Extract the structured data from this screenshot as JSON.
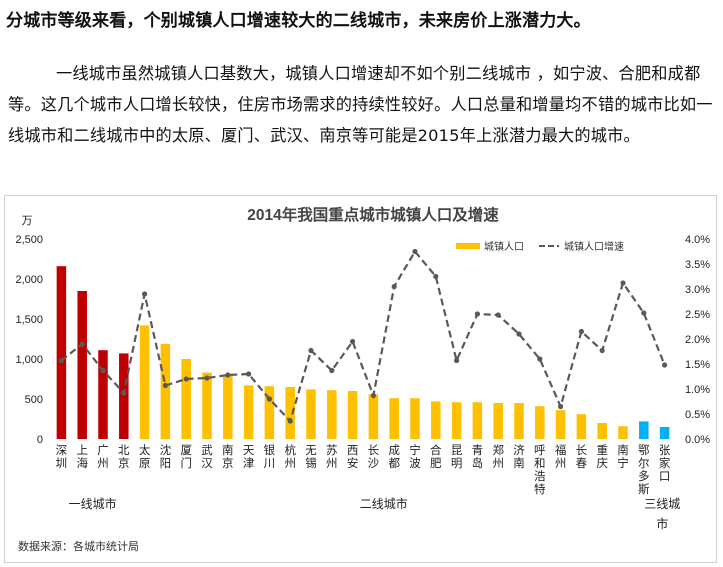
{
  "headline": "分城市等级来看，个别城镇人口增速较大的二线城市，未来房价上涨潜力大。",
  "paragraph": "一线城市虽然城镇人口基数大，城镇人口增速却不如个别二线城市 ，如宁波、合肥和成都等。这几个城市人口增长较快，住房市场需求的持续性较好。人口总量和增量均不错的城市比如一线城市和二线城市中的太原、厦门、武汉、南京等可能是2015年上涨潜力最大的城市。",
  "colors": {
    "tier1": "#C00000",
    "tier2": "#FFC000",
    "tier3": "#00B0F0",
    "line": "#595959"
  },
  "chart_data": {
    "type": "bar",
    "title": "2014年我国重点城市城镇人口及增速",
    "y_unit": "万",
    "ylim": [
      0,
      2500
    ],
    "yticks": [
      0,
      500,
      1000,
      1500,
      2000,
      2500
    ],
    "ytick_labels": [
      "0",
      "500",
      "1,000",
      "1,500",
      "2,000",
      "2,500"
    ],
    "y2lim": [
      0,
      4.0
    ],
    "y2ticks": [
      0,
      0.5,
      1.0,
      1.5,
      2.0,
      2.5,
      3.0,
      3.5,
      4.0
    ],
    "y2tick_labels": [
      "0.0%",
      "0.5%",
      "1.0%",
      "1.5%",
      "2.0%",
      "2.5%",
      "3.0%",
      "3.5%",
      "4.0%"
    ],
    "categories": [
      "深圳",
      "上海",
      "广州",
      "北京",
      "太原",
      "沈阳",
      "厦门",
      "武汉",
      "南京",
      "天津",
      "银川",
      "杭州",
      "无锡",
      "苏州",
      "西安",
      "长沙",
      "成都",
      "宁波",
      "合肥",
      "昆明",
      "青岛",
      "郑州",
      "济南",
      "呼和浩特",
      "福州",
      "长春",
      "重庆",
      "南宁",
      "鄂尔多斯",
      "张家口"
    ],
    "tiers": [
      1,
      1,
      1,
      1,
      2,
      2,
      2,
      2,
      2,
      2,
      2,
      2,
      2,
      2,
      2,
      2,
      2,
      2,
      2,
      2,
      2,
      2,
      2,
      2,
      2,
      2,
      2,
      2,
      3,
      3
    ],
    "series": [
      {
        "name": "城镇人口",
        "kind": "bar",
        "values": [
          2160,
          1850,
          1110,
          1070,
          1420,
          1190,
          1000,
          830,
          790,
          670,
          660,
          650,
          620,
          610,
          600,
          560,
          510,
          510,
          470,
          460,
          460,
          450,
          450,
          410,
          360,
          310,
          200,
          160,
          220,
          150
        ]
      },
      {
        "name": "城镇人口增速",
        "kind": "line",
        "axis": "right",
        "values": [
          1.57,
          1.9,
          1.37,
          0.92,
          2.9,
          1.07,
          1.2,
          1.22,
          1.28,
          1.3,
          0.8,
          0.36,
          1.77,
          1.37,
          1.95,
          0.87,
          3.05,
          3.75,
          3.25,
          1.57,
          2.5,
          2.48,
          2.1,
          1.6,
          0.65,
          2.15,
          1.77,
          3.12,
          2.52,
          1.48
        ]
      }
    ],
    "groups": [
      {
        "label": "一线城市",
        "from": 0,
        "to": 3
      },
      {
        "label": "二线城市",
        "from": 4,
        "to": 27
      },
      {
        "label": "三线城市",
        "from": 28,
        "to": 29
      }
    ],
    "legend_position": "top-right",
    "grid": false,
    "source": "数据来源：各城市统计局"
  }
}
